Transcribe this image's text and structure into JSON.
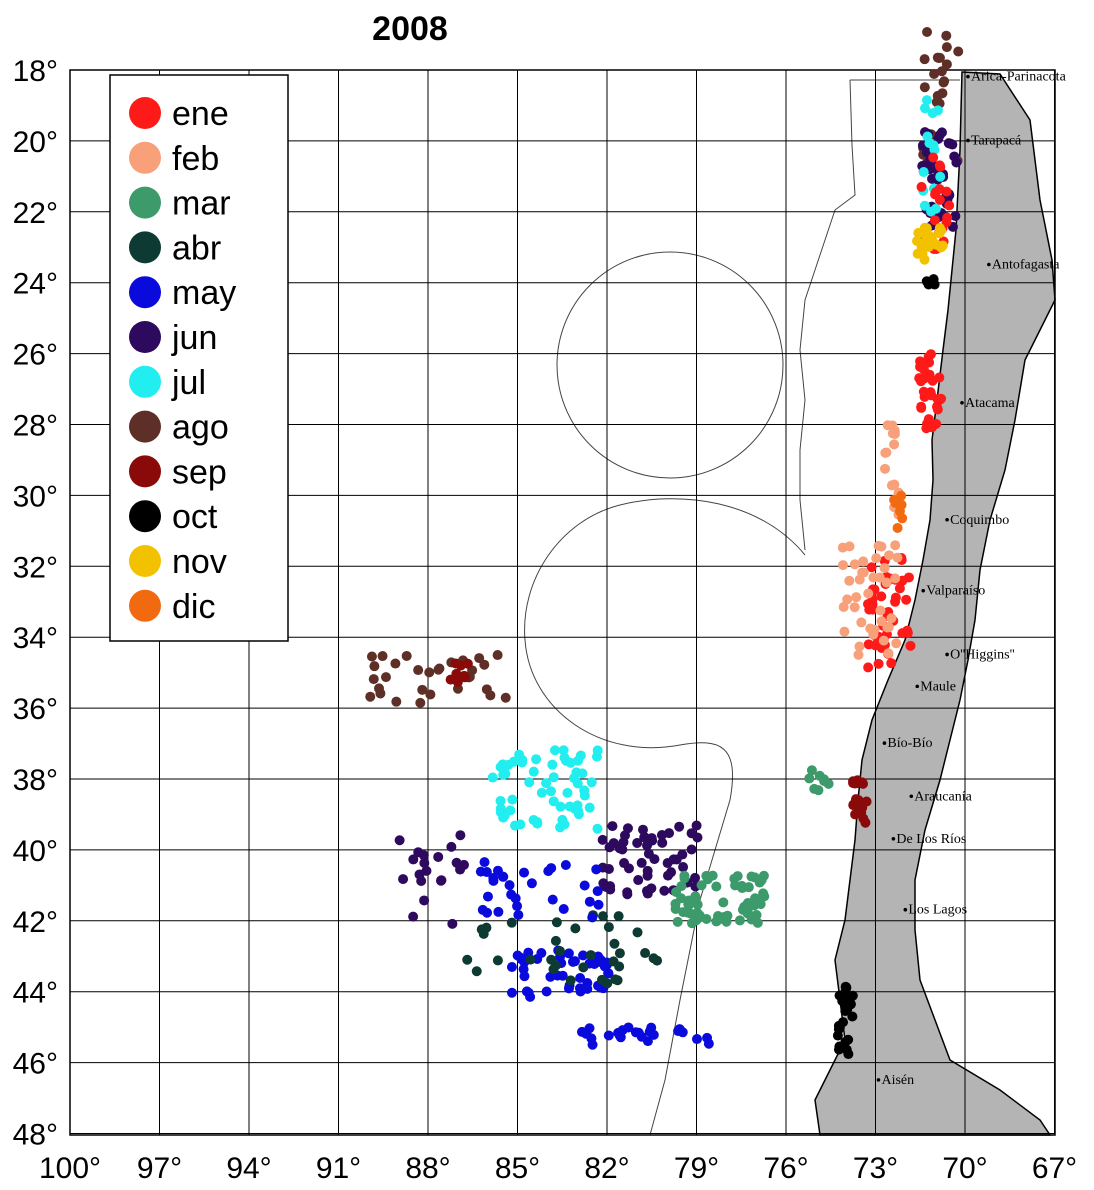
{
  "title": "2008",
  "longitude_labels": [
    "100°",
    "97°",
    "94°",
    "91°",
    "88°",
    "85°",
    "82°",
    "79°",
    "76°",
    "73°",
    "70°",
    "67°"
  ],
  "latitude_labels": [
    "18°",
    "20°",
    "22°",
    "24°",
    "26°",
    "28°",
    "30°",
    "32°",
    "34°",
    "36°",
    "38°",
    "40°",
    "42°",
    "44°",
    "46°",
    "48°"
  ],
  "legend": [
    {
      "label": "ene",
      "color": "#ff1a1a"
    },
    {
      "label": "feb",
      "color": "#f7a07a"
    },
    {
      "label": "mar",
      "color": "#3c9a6b"
    },
    {
      "label": "abr",
      "color": "#0d3a32"
    },
    {
      "label": "may",
      "color": "#0a0adc"
    },
    {
      "label": "jun",
      "color": "#2e0a5e"
    },
    {
      "label": "jul",
      "color": "#22eef0"
    },
    {
      "label": "ago",
      "color": "#5e2f26"
    },
    {
      "label": "sep",
      "color": "#8a0a0a"
    },
    {
      "label": "oct",
      "color": "#000000"
    },
    {
      "label": "nov",
      "color": "#f2c200"
    },
    {
      "label": "dic",
      "color": "#f26a10"
    }
  ],
  "regions": [
    {
      "name": "Arica-Parinacota",
      "lon": -69.8,
      "lat": -18.3
    },
    {
      "name": "Tarapacá",
      "lon": -69.8,
      "lat": -20.1
    },
    {
      "name": "Antofagasta",
      "lon": -69.1,
      "lat": -23.6
    },
    {
      "name": "Atacama",
      "lon": -70.0,
      "lat": -27.5
    },
    {
      "name": "Coquimbo",
      "lon": -70.5,
      "lat": -30.8
    },
    {
      "name": "Valparaíso",
      "lon": -71.3,
      "lat": -32.8
    },
    {
      "name": "O''Higgins''",
      "lon": -70.5,
      "lat": -34.6
    },
    {
      "name": "Maule",
      "lon": -71.5,
      "lat": -35.5
    },
    {
      "name": "Bío-Bío",
      "lon": -72.6,
      "lat": -37.1
    },
    {
      "name": "Araucanía",
      "lon": -71.7,
      "lat": -38.6
    },
    {
      "name": "De Los Ríos",
      "lon": -72.3,
      "lat": -39.8
    },
    {
      "name": "Los Lagos",
      "lon": -71.9,
      "lat": -41.8
    },
    {
      "name": "Aisén",
      "lon": -72.8,
      "lat": -46.6
    }
  ]
}
